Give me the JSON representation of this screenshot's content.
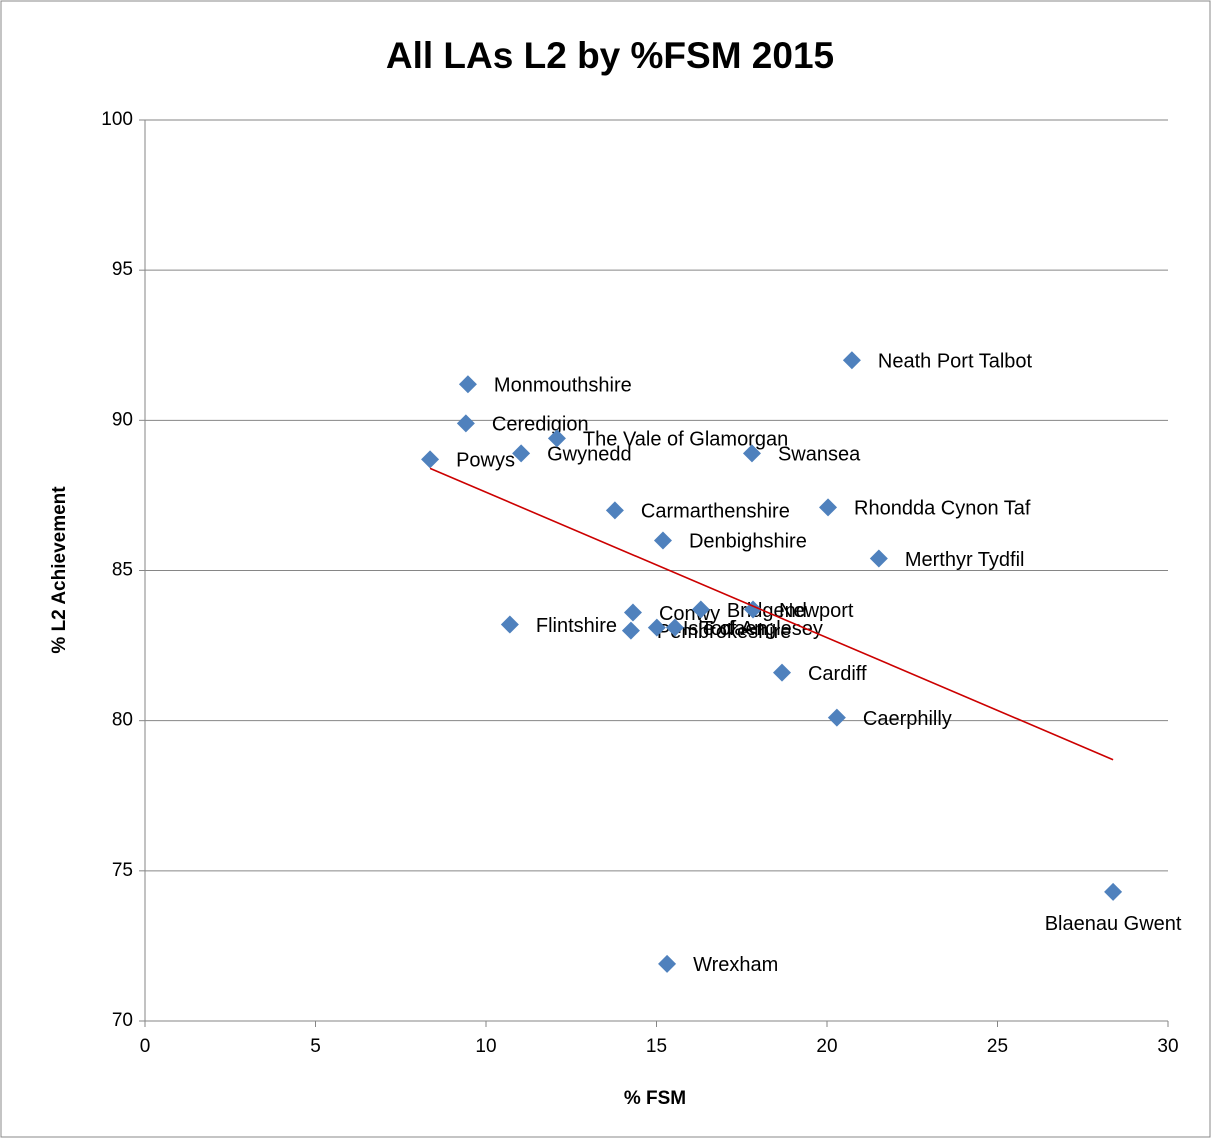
{
  "chart_data": {
    "type": "scatter",
    "title": "All LAs L2 by %FSM 2015",
    "x_label": "% FSM",
    "y_label": "% L2 Achievement",
    "labels": [
      "Powys",
      "Monmouthshire",
      "Ceredigion",
      "Gwynedd",
      "The Vale of Glamorgan",
      "Carmarthenshire",
      "Denbighshire",
      "Flintshire",
      "Conwy",
      "Pembrokeshire",
      "Isle of Anglesey",
      "Torfaen",
      "Bridgend",
      "Newport",
      "Swansea",
      "Neath Port Talbot",
      "Rhondda Cynon Taf",
      "Merthyr Tydfil",
      "Cardiff",
      "Caerphilly",
      "Blaenau Gwent",
      "Wrexham"
    ],
    "x": [
      8.36,
      9.47,
      9.41,
      11.03,
      12.08,
      13.78,
      15.19,
      10.7,
      14.31,
      14.25,
      15.01,
      15.54,
      16.3,
      17.83,
      17.8,
      20.73,
      20.03,
      21.52,
      18.68,
      20.29,
      28.39,
      15.31
    ],
    "y": [
      88.7,
      91.2,
      89.9,
      88.9,
      89.4,
      87.0,
      86.0,
      83.2,
      83.6,
      83.0,
      83.1,
      83.1,
      83.7,
      83.7,
      88.9,
      92.0,
      87.1,
      85.4,
      81.6,
      80.1,
      74.3,
      71.9
    ],
    "color": "#4f81bd",
    "trendline": {
      "x": [
        8.36,
        28.39
      ],
      "y": [
        88.4,
        78.7
      ],
      "color": "#cc0000"
    },
    "xlim": [
      0,
      30
    ],
    "xticks": [
      0,
      5,
      10,
      15,
      20,
      25,
      30
    ],
    "ylim": [
      70,
      100
    ],
    "yticks": [
      70,
      75,
      80,
      85,
      90,
      95,
      100
    ],
    "grid": true
  }
}
